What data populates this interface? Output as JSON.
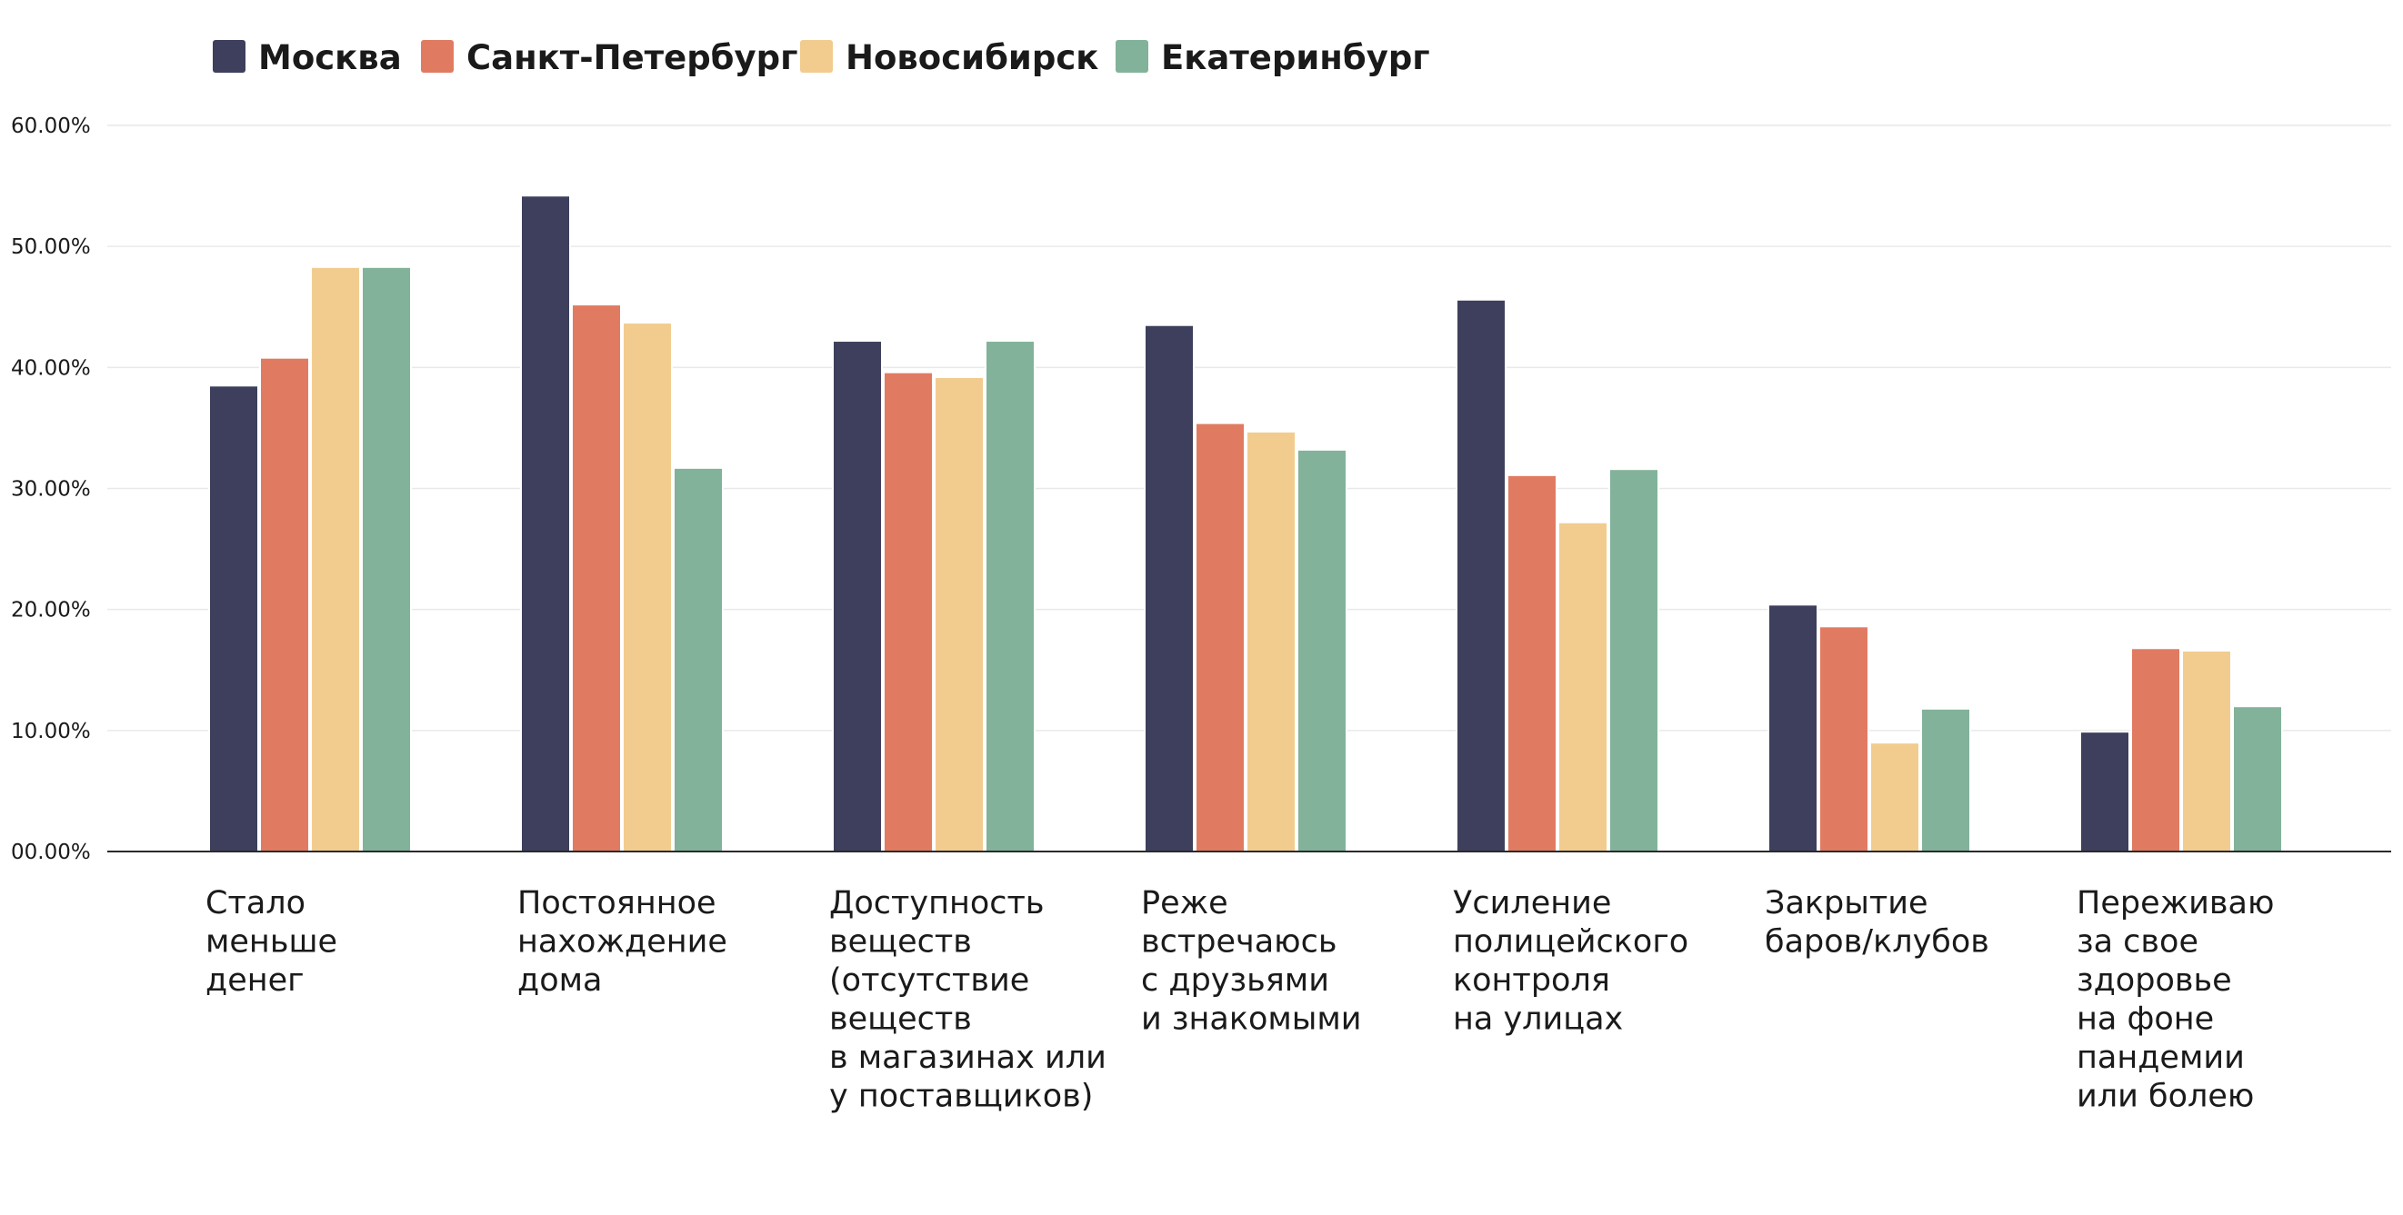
{
  "chart_data": {
    "type": "bar",
    "title": "",
    "xlabel": "",
    "ylabel": "",
    "ylim": [
      0,
      60
    ],
    "grid": true,
    "legend_position": "top-left",
    "yticks": [
      {
        "value": 0,
        "label": "00.00%"
      },
      {
        "value": 10,
        "label": "10.00%"
      },
      {
        "value": 20,
        "label": "20.00%"
      },
      {
        "value": 30,
        "label": "30.00%"
      },
      {
        "value": 40,
        "label": "40.00%"
      },
      {
        "value": 50,
        "label": "50.00%"
      },
      {
        "value": 60,
        "label": "60.00%"
      }
    ],
    "categories": [
      [
        "Стало",
        "меньше",
        "денег"
      ],
      [
        "Постоянное",
        "нахождение",
        "дома"
      ],
      [
        "Доступность",
        "веществ",
        "(отсутствие",
        "веществ",
        "в магазинах или",
        "у поставщиков)"
      ],
      [
        "Реже",
        "встречаюсь",
        "с друзьями",
        "и знакомыми"
      ],
      [
        "Усиление",
        "полицейского",
        "контроля",
        "на улицах"
      ],
      [
        "Закрытие",
        "баров/клубов"
      ],
      [
        "Переживаю",
        "за свое",
        "здоровье",
        "на фоне",
        "пандемии",
        "или болею"
      ]
    ],
    "series": [
      {
        "name": "Москва",
        "color": "#3d3f5c",
        "values": [
          38.5,
          54.2,
          42.2,
          43.5,
          45.6,
          20.4,
          9.9
        ]
      },
      {
        "name": "Санкт-Петербург",
        "color": "#e07b62",
        "values": [
          40.8,
          45.2,
          39.6,
          35.4,
          31.1,
          18.6,
          16.8
        ]
      },
      {
        "name": "Новосибирск",
        "color": "#f2cc8f",
        "values": [
          48.3,
          43.7,
          39.2,
          34.7,
          27.2,
          9.0,
          16.6
        ]
      },
      {
        "name": "Екатеринбург",
        "color": "#82b29a",
        "values": [
          48.3,
          31.7,
          42.2,
          33.2,
          31.6,
          11.8,
          12.0
        ]
      }
    ]
  }
}
